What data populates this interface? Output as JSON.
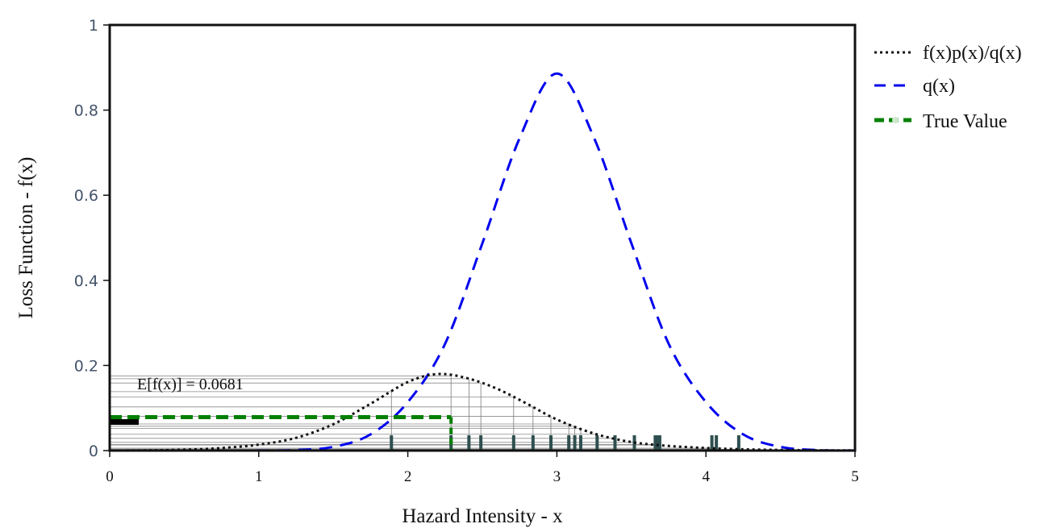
{
  "chart_data": {
    "type": "line",
    "xlabel": "Hazard Intensity - x",
    "ylabel": "Loss Function - f(x)",
    "xlim": [
      0,
      5
    ],
    "ylim": [
      0,
      1
    ],
    "x_ticks": [
      "0",
      "1",
      "2",
      "3",
      "4",
      "5"
    ],
    "y_ticks": [
      "0",
      "0.2",
      "0.4",
      "0.6",
      "0.8",
      "1"
    ],
    "annotation": "E[f(x)] = 0.0681",
    "grid": false,
    "legend_position": "top-right, outside plot",
    "legend": [
      "f(x)p(x)/q(x)",
      "q(x)",
      "True Value"
    ],
    "series": [
      {
        "name": "f(x)p(x)/q(x)",
        "style": "dotted",
        "color": "#111111",
        "x": [
          0,
          0.25,
          0.5,
          0.75,
          1.0,
          1.25,
          1.5,
          1.75,
          2.0,
          2.2,
          2.4,
          2.6,
          2.8,
          3.0,
          3.25,
          3.5,
          3.75,
          4.0,
          4.25,
          4.5,
          4.75,
          5.0
        ],
        "y": [
          0,
          0.0005,
          0.002,
          0.006,
          0.014,
          0.03,
          0.062,
          0.11,
          0.161,
          0.18,
          0.17,
          0.145,
          0.11,
          0.073,
          0.04,
          0.02,
          0.011,
          0.006,
          0.003,
          0.0015,
          0.0007,
          0.0003
        ]
      },
      {
        "name": "q(x)",
        "style": "dashed",
        "color": "#0000ee",
        "x": [
          0,
          0.5,
          1.0,
          1.25,
          1.5,
          1.75,
          2.0,
          2.25,
          2.5,
          2.75,
          3.0,
          3.25,
          3.5,
          3.75,
          4.0,
          4.25,
          4.5,
          4.75,
          5.0
        ],
        "y": [
          0,
          0,
          0.0002,
          0.0013,
          0.0087,
          0.038,
          0.114,
          0.251,
          0.487,
          0.734,
          0.886,
          0.734,
          0.487,
          0.251,
          0.114,
          0.038,
          0.0087,
          0.0013,
          0.0002
        ]
      },
      {
        "name": "True Value",
        "style": "dashed-thick",
        "color": "#008000",
        "x": [
          0,
          2.29
        ],
        "y": [
          0.0785,
          0.0785
        ]
      }
    ],
    "sample_x": [
      1.89,
      2.29,
      2.41,
      2.49,
      2.71,
      2.84,
      2.96,
      3.08,
      3.12,
      3.16,
      3.27,
      3.39,
      3.52,
      3.66,
      3.67,
      3.69,
      4.04,
      4.07,
      4.22
    ],
    "estimate_marker_y": 0.0681,
    "colors": {
      "ratio": "#111111",
      "q": "#0000ee",
      "true_value": "#008000",
      "samples": "#2f4f4f",
      "frame": "#111111"
    }
  }
}
